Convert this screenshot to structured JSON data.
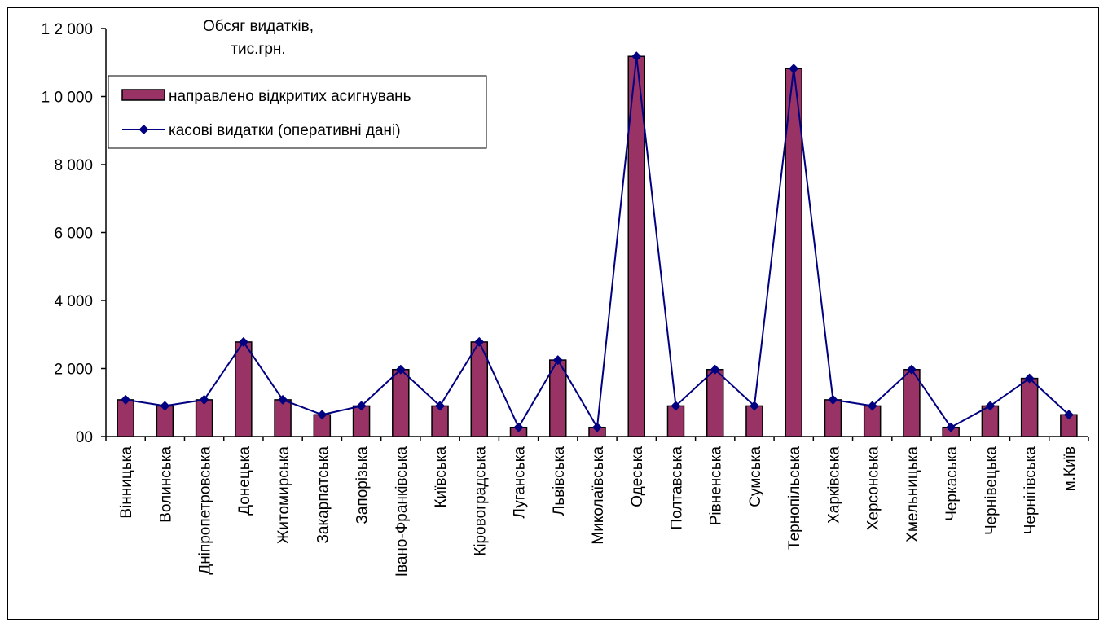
{
  "chart_data": {
    "type": "bar",
    "title": "",
    "ylabel_line1": "Обсяг видатків,",
    "ylabel_line2": "тис.грн.",
    "ylim": [
      0,
      12000
    ],
    "yticks": [
      {
        "value": 0,
        "label": "00"
      },
      {
        "value": 2000,
        "label": "2 000"
      },
      {
        "value": 4000,
        "label": "4 000"
      },
      {
        "value": 6000,
        "label": "6 000"
      },
      {
        "value": 8000,
        "label": "8 000"
      },
      {
        "value": 10000,
        "label": "1 0 000"
      },
      {
        "value": 12000,
        "label": "1 2 000"
      }
    ],
    "categories": [
      "Вінницька",
      "Волинська",
      "Дніпропетровська",
      "Донецька",
      "Житомирська",
      "Закарпатська",
      "Запорізька",
      "Івано-Франківська",
      "Київська",
      "Кіровоградська",
      "Луганська",
      "Львівська",
      "Миколаївська",
      "Одеська",
      "Полтавська",
      "Рівненська",
      "Сумська",
      "Тернопільська",
      "Харківська",
      "Херсонська",
      "Хмельницька",
      "Черкаська",
      "Чернівецька",
      "Чернігівська",
      "м.Київ"
    ],
    "series": [
      {
        "name": "направлено відкритих асигнувань",
        "type": "bar",
        "color": "#993366",
        "values": [
          1080,
          900,
          1080,
          2780,
          1080,
          640,
          900,
          1970,
          900,
          2780,
          270,
          2250,
          270,
          11180,
          900,
          1970,
          900,
          10820,
          1080,
          900,
          1970,
          270,
          900,
          1710,
          640
        ]
      },
      {
        "name": "касові видатки (оперативні дані)",
        "type": "line",
        "color": "#000080",
        "values": [
          1080,
          900,
          1080,
          2780,
          1080,
          640,
          900,
          1970,
          900,
          2780,
          270,
          2250,
          270,
          11180,
          900,
          1970,
          900,
          10820,
          1080,
          900,
          1970,
          270,
          900,
          1710,
          640
        ]
      }
    ],
    "legend_position": "top-left",
    "grid": false
  }
}
